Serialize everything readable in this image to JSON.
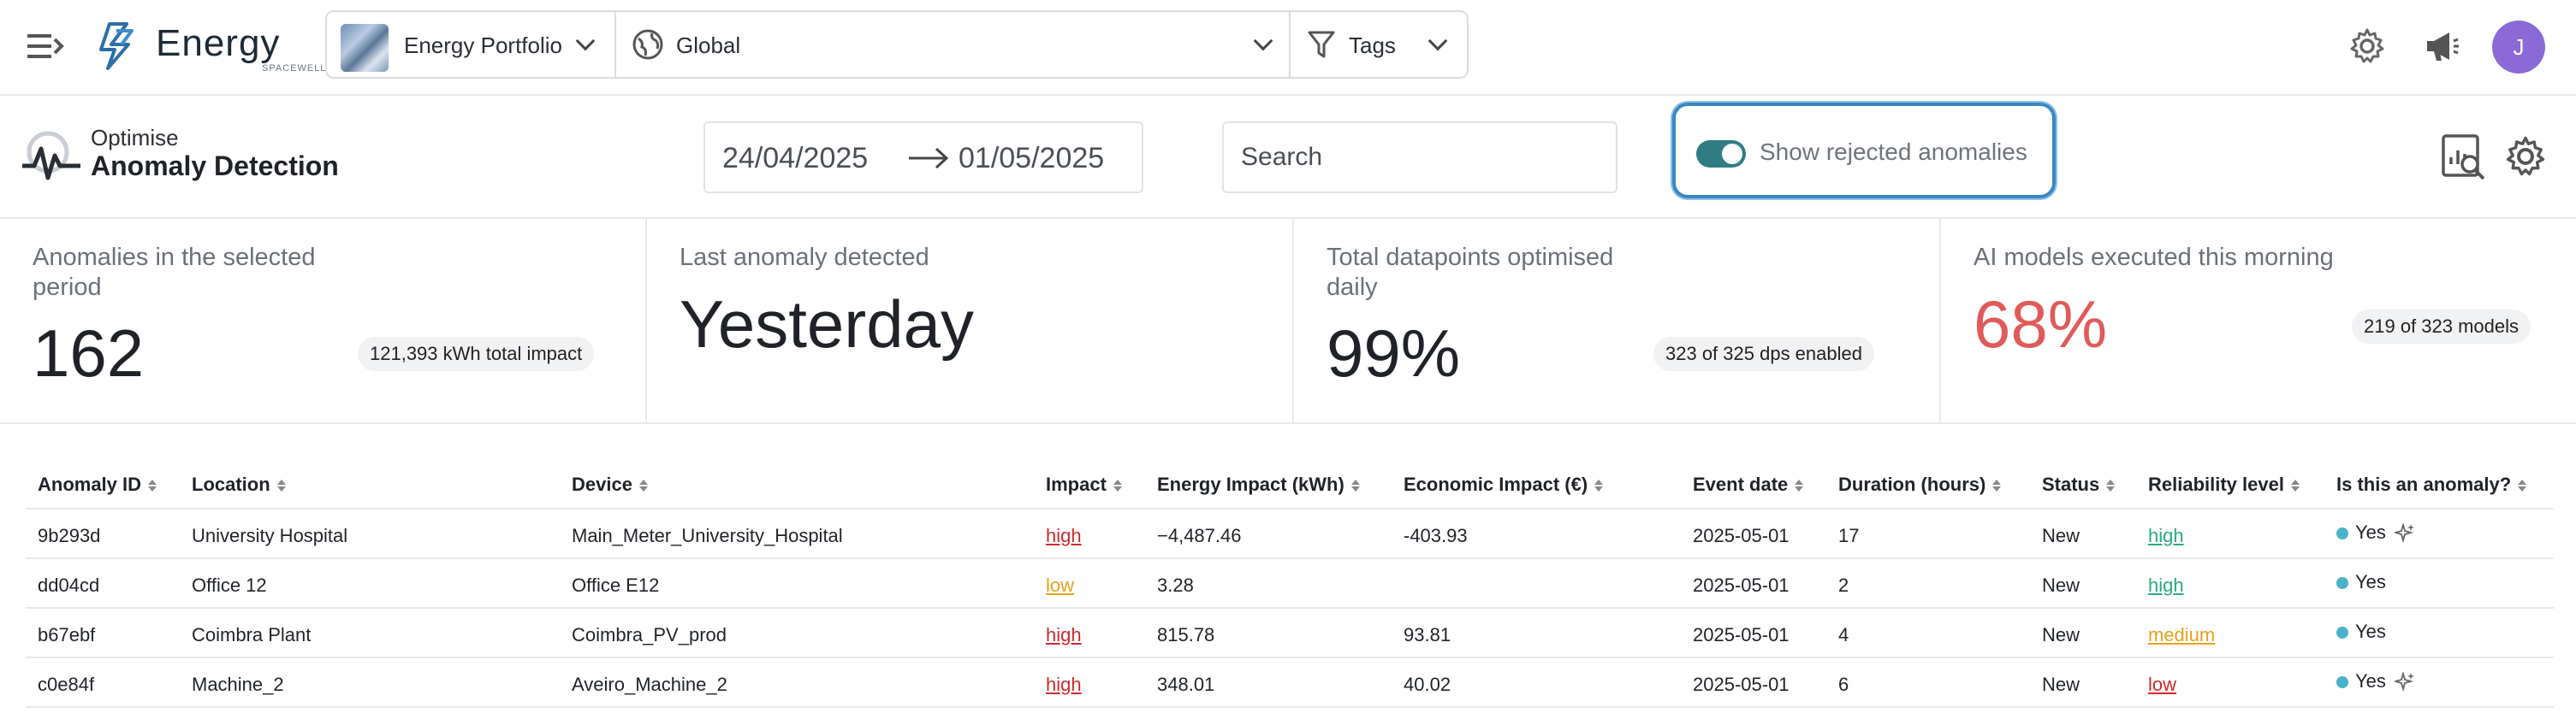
{
  "topbar": {
    "logo_word": "Energy",
    "logo_sub": "SPACEWELL",
    "portfolio": "Energy Portfolio",
    "region": "Global",
    "tags": "Tags",
    "avatar_initial": "J"
  },
  "header": {
    "kicker": "Optimise",
    "title": "Anomaly Detection",
    "date_start": "24/04/2025",
    "date_end": "01/05/2025",
    "search_placeholder": "Search",
    "toggle_label": "Show rejected anomalies",
    "toggle_on": true
  },
  "stats": [
    {
      "title": "Anomalies in the selected period",
      "value": "162",
      "badge": "121,393 kWh total impact"
    },
    {
      "title": "Last anomaly detected",
      "value": "Yesterday",
      "badge": ""
    },
    {
      "title": "Total datapoints optimised daily",
      "value": "99%",
      "badge": "323 of 325 dps enabled"
    },
    {
      "title": "AI models executed this morning",
      "value": "68%",
      "badge": "219 of 323 models"
    }
  ],
  "table": {
    "columns": [
      "Anomaly ID",
      "Location",
      "Device",
      "Impact",
      "Energy Impact (kWh)",
      "Economic Impact (€)",
      "Event date",
      "Duration (hours)",
      "Status",
      "Reliability level",
      "Is this an anomaly?"
    ],
    "rows": [
      {
        "id": "9b293d",
        "location": "University Hospital",
        "device": "Main_Meter_University_Hospital",
        "impact": "high",
        "energy": "−4,487.46",
        "economic": "-403.93",
        "date": "2025-05-01",
        "duration": "17",
        "status": "New",
        "reliability": "high",
        "answer": "Yes",
        "ai": true
      },
      {
        "id": "dd04cd",
        "location": "Office 12",
        "device": "Office E12",
        "impact": "low",
        "energy": "3.28",
        "economic": "",
        "date": "2025-05-01",
        "duration": "2",
        "status": "New",
        "reliability": "high",
        "answer": "Yes",
        "ai": false
      },
      {
        "id": "b67ebf",
        "location": "Coimbra Plant",
        "device": "Coimbra_PV_prod",
        "impact": "high",
        "energy": "815.78",
        "economic": "93.81",
        "date": "2025-05-01",
        "duration": "4",
        "status": "New",
        "reliability": "medium",
        "answer": "Yes",
        "ai": false
      },
      {
        "id": "c0e84f",
        "location": "Machine_2",
        "device": "Aveiro_Machine_2",
        "impact": "high",
        "energy": "348.01",
        "economic": "40.02",
        "date": "2025-05-01",
        "duration": "6",
        "status": "New",
        "reliability": "low",
        "answer": "Yes",
        "ai": true
      }
    ]
  },
  "colors": {
    "accent_teal": "#2f7d83",
    "danger_red": "#e05a5a",
    "impact_high": "#cc2b2b",
    "impact_low": "#e6a31a",
    "reliability_high": "#2aa97e",
    "reliability_medium": "#e6a31a",
    "reliability_low": "#cc2b2b",
    "avatar_purple": "#8a6ad7",
    "focus_outline": "#3b86c4"
  },
  "icons": [
    "menu-expand-icon",
    "energy-logo-icon",
    "globe-icon",
    "filter-icon",
    "gear-icon",
    "megaphone-icon",
    "anomaly-pulse-icon",
    "arrow-right-icon",
    "report-search-icon",
    "sparkle-icon"
  ]
}
